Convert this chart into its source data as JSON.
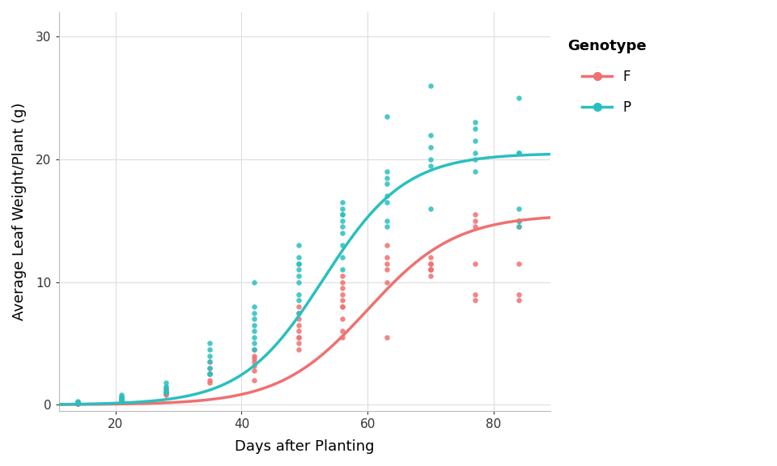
{
  "title": "",
  "xlabel": "Days after Planting",
  "ylabel": "Average Leaf Weight/Plant (g)",
  "color_F": "#F07070",
  "color_P": "#2ABFBF",
  "background_color": "#FFFFFF",
  "grid_color": "#DDDDDD",
  "xlim": [
    11,
    89
  ],
  "ylim": [
    -0.5,
    32
  ],
  "xticks": [
    20,
    40,
    60,
    80
  ],
  "yticks": [
    0,
    10,
    20,
    30
  ],
  "legend_title": "Genotype",
  "curve_F_asymptote": 15.5,
  "curve_F_xmid": 60.0,
  "curve_F_scale": 7.0,
  "curve_P_asymptote": 20.5,
  "curve_P_xmid": 53.0,
  "curve_P_scale": 6.5,
  "scatter_F_x": [
    14,
    14,
    14,
    21,
    21,
    21,
    21,
    21,
    28,
    28,
    28,
    28,
    28,
    35,
    35,
    35,
    35,
    35,
    35,
    42,
    42,
    42,
    42,
    42,
    42,
    42,
    49,
    49,
    49,
    49,
    49,
    49,
    49,
    49,
    49,
    56,
    56,
    56,
    56,
    56,
    56,
    56,
    56,
    56,
    56,
    63,
    63,
    63,
    63,
    63,
    63,
    70,
    70,
    70,
    70,
    70,
    70,
    70,
    77,
    77,
    77,
    77,
    77,
    77,
    84,
    84,
    84,
    84,
    84,
    84
  ],
  "scatter_F_y": [
    0.1,
    0.2,
    0.1,
    0.3,
    0.4,
    0.5,
    0.4,
    0.3,
    0.8,
    1.0,
    1.1,
    1.3,
    0.9,
    2.0,
    2.5,
    3.0,
    3.5,
    2.5,
    1.8,
    3.5,
    4.0,
    3.8,
    2.0,
    3.2,
    4.5,
    2.8,
    5.5,
    6.0,
    7.0,
    8.0,
    5.5,
    6.5,
    7.5,
    4.5,
    5.0,
    8.0,
    9.0,
    10.0,
    8.5,
    9.5,
    7.0,
    6.0,
    10.5,
    8.0,
    5.5,
    11.0,
    5.5,
    12.0,
    13.0,
    11.5,
    10.0,
    11.0,
    11.5,
    12.0,
    10.5,
    11.0,
    11.0,
    11.5,
    8.5,
    9.0,
    11.5,
    15.0,
    15.5,
    14.5,
    15.0,
    15.0,
    8.5,
    9.0,
    11.5,
    14.5
  ],
  "scatter_P_x": [
    14,
    14,
    14,
    21,
    21,
    21,
    21,
    21,
    28,
    28,
    28,
    28,
    28,
    28,
    35,
    35,
    35,
    35,
    35,
    35,
    35,
    42,
    42,
    42,
    42,
    42,
    42,
    42,
    42,
    42,
    49,
    49,
    49,
    49,
    49,
    49,
    49,
    49,
    49,
    49,
    56,
    56,
    56,
    56,
    56,
    56,
    56,
    56,
    56,
    56,
    63,
    63,
    63,
    63,
    63,
    63,
    63,
    63,
    70,
    70,
    70,
    70,
    70,
    70,
    77,
    77,
    77,
    77,
    77,
    77,
    84,
    84,
    84,
    84,
    84,
    84
  ],
  "scatter_P_y": [
    0.2,
    0.1,
    0.3,
    0.5,
    0.6,
    0.7,
    0.4,
    0.8,
    1.0,
    1.2,
    1.4,
    1.5,
    1.8,
    1.0,
    2.5,
    3.0,
    3.5,
    4.0,
    4.5,
    2.5,
    5.0,
    5.0,
    5.5,
    6.0,
    4.5,
    7.0,
    6.5,
    7.5,
    8.0,
    10.0,
    10.0,
    11.0,
    11.5,
    12.0,
    9.0,
    8.5,
    13.0,
    11.5,
    10.5,
    7.5,
    14.0,
    15.0,
    15.5,
    16.0,
    14.5,
    13.0,
    16.5,
    15.5,
    12.0,
    11.0,
    14.5,
    15.0,
    16.5,
    17.0,
    18.0,
    23.5,
    19.0,
    18.5,
    21.0,
    26.0,
    19.5,
    20.0,
    22.0,
    16.0,
    19.0,
    20.0,
    20.5,
    22.5,
    23.0,
    21.5,
    15.0,
    16.0,
    14.5,
    20.5,
    25.0,
    20.5
  ],
  "point_size": 22,
  "line_width": 2.5,
  "alpha_points": 0.85,
  "font_size_label": 13,
  "font_size_tick": 11,
  "font_size_legend_title": 13,
  "font_size_legend": 12
}
